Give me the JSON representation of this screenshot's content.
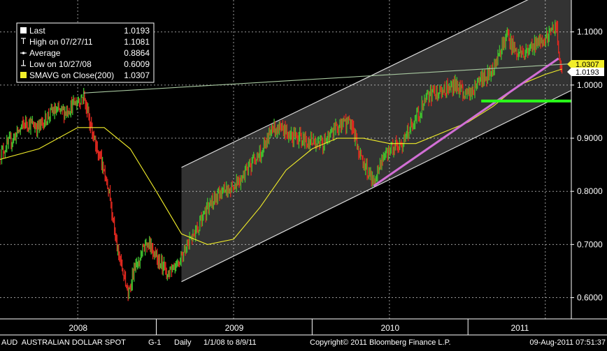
{
  "chart_data": {
    "type": "line",
    "instrument": "AUD  AUSTRALIAN DOLLAR SPOT",
    "footer": {
      "instrument": "AUD  AUSTRALIAN DOLLAR SPOT",
      "g_code": "G-1",
      "period": "Daily",
      "range": "1/1/08 to 8/9/11",
      "copyright": "Copyright© 2011 Bloomberg Finance L.P.",
      "timestamp": "09-Aug-2011 07:51:37"
    },
    "x_tick_labels": [
      "2008",
      "2009",
      "2010",
      "2011"
    ],
    "x_range": [
      "2008-01-01",
      "2011-08-31"
    ],
    "y_tick_labels": [
      "0.6000",
      "0.7000",
      "0.8000",
      "0.9000",
      "1.0000",
      "1.1000"
    ],
    "y_ticks": [
      0.6,
      0.7,
      0.8,
      0.9,
      1.0,
      1.1
    ],
    "ylim": [
      0.56,
      1.16
    ],
    "grid": true,
    "legend_placement": "top-left",
    "legend": [
      {
        "label": "Last",
        "value": "1.0193"
      },
      {
        "label": "High on 07/27/11",
        "value": "1.1081"
      },
      {
        "label": "Average",
        "value": "0.8864"
      },
      {
        "label": "Low on 10/27/08",
        "value": "0.6009"
      },
      {
        "label": "SMAVG on Close(200)",
        "value": "1.0307"
      }
    ],
    "right_labels": {
      "smavg": "1.0307",
      "last": "1.0193"
    },
    "colors": {
      "background": "#000000",
      "up_bar": "#3fbf2f",
      "down_bar": "#e0281f",
      "smavg": "#f2ee2a",
      "channel": "#d9d9d9",
      "support_line": "#d26fd6",
      "resistance_line": "#a8c8a0",
      "level_line": "#2aff1a"
    },
    "series": [
      {
        "name": "AUD  AUSTRALIAN DOLLAR SPOT",
        "x": [
          "2008-01-01",
          "2008-02-01",
          "2008-03-01",
          "2008-04-01",
          "2008-05-01",
          "2008-06-01",
          "2008-07-01",
          "2008-07-15",
          "2008-08-01",
          "2008-08-15",
          "2008-09-01",
          "2008-09-15",
          "2008-10-01",
          "2008-10-27",
          "2008-11-15",
          "2008-12-01",
          "2008-12-15",
          "2009-01-01",
          "2009-02-01",
          "2009-03-01",
          "2009-04-01",
          "2009-05-01",
          "2009-06-01",
          "2009-07-01",
          "2009-08-01",
          "2009-09-01",
          "2009-10-01",
          "2009-11-01",
          "2009-12-01",
          "2010-01-01",
          "2010-02-01",
          "2010-03-01",
          "2010-04-01",
          "2010-05-01",
          "2010-05-25",
          "2010-06-15",
          "2010-07-01",
          "2010-08-01",
          "2010-09-01",
          "2010-10-01",
          "2010-11-01",
          "2010-12-01",
          "2011-01-01",
          "2011-02-01",
          "2011-03-01",
          "2011-04-01",
          "2011-05-01",
          "2011-06-01",
          "2011-07-01",
          "2011-07-27",
          "2011-08-09"
        ],
        "values": [
          0.87,
          0.9,
          0.93,
          0.92,
          0.95,
          0.95,
          0.97,
          0.98,
          0.92,
          0.88,
          0.84,
          0.79,
          0.69,
          0.61,
          0.66,
          0.69,
          0.7,
          0.68,
          0.64,
          0.68,
          0.72,
          0.77,
          0.8,
          0.81,
          0.84,
          0.87,
          0.92,
          0.91,
          0.9,
          0.89,
          0.89,
          0.92,
          0.93,
          0.85,
          0.82,
          0.86,
          0.88,
          0.89,
          0.94,
          0.98,
          0.99,
          1.0,
          0.98,
          1.01,
          1.03,
          1.09,
          1.06,
          1.07,
          1.09,
          1.108,
          1.019
        ]
      },
      {
        "name": "SMAVG on Close(200)",
        "x": [
          "2008-01-01",
          "2008-04-01",
          "2008-07-01",
          "2008-09-01",
          "2008-11-01",
          "2009-01-01",
          "2009-03-01",
          "2009-05-01",
          "2009-07-01",
          "2009-09-01",
          "2009-11-01",
          "2010-01-01",
          "2010-03-01",
          "2010-05-01",
          "2010-07-01",
          "2010-09-01",
          "2010-11-01",
          "2011-01-01",
          "2011-03-01",
          "2011-05-01",
          "2011-07-01",
          "2011-08-09"
        ],
        "values": [
          0.86,
          0.88,
          0.92,
          0.92,
          0.88,
          0.8,
          0.72,
          0.7,
          0.71,
          0.77,
          0.84,
          0.88,
          0.9,
          0.9,
          0.89,
          0.89,
          0.91,
          0.93,
          0.96,
          1.0,
          1.02,
          1.03
        ]
      }
    ],
    "channel": {
      "lower": {
        "x": [
          "2009-03-01",
          "2011-08-31"
        ],
        "y": [
          0.63,
          0.99
        ]
      },
      "upper": {
        "x": [
          "2009-03-01",
          "2011-08-31"
        ],
        "y": [
          0.845,
          1.2
        ]
      }
    },
    "support_line": {
      "x": [
        "2010-05-25",
        "2011-08-01"
      ],
      "y": [
        0.81,
        1.05
      ]
    },
    "resistance_line": {
      "x": [
        "2008-07-15",
        "2011-08-31"
      ],
      "y": [
        0.985,
        1.04
      ]
    },
    "level_line": {
      "x": [
        "2011-02-01",
        "2011-08-31"
      ],
      "y": [
        0.97,
        0.97
      ]
    }
  }
}
